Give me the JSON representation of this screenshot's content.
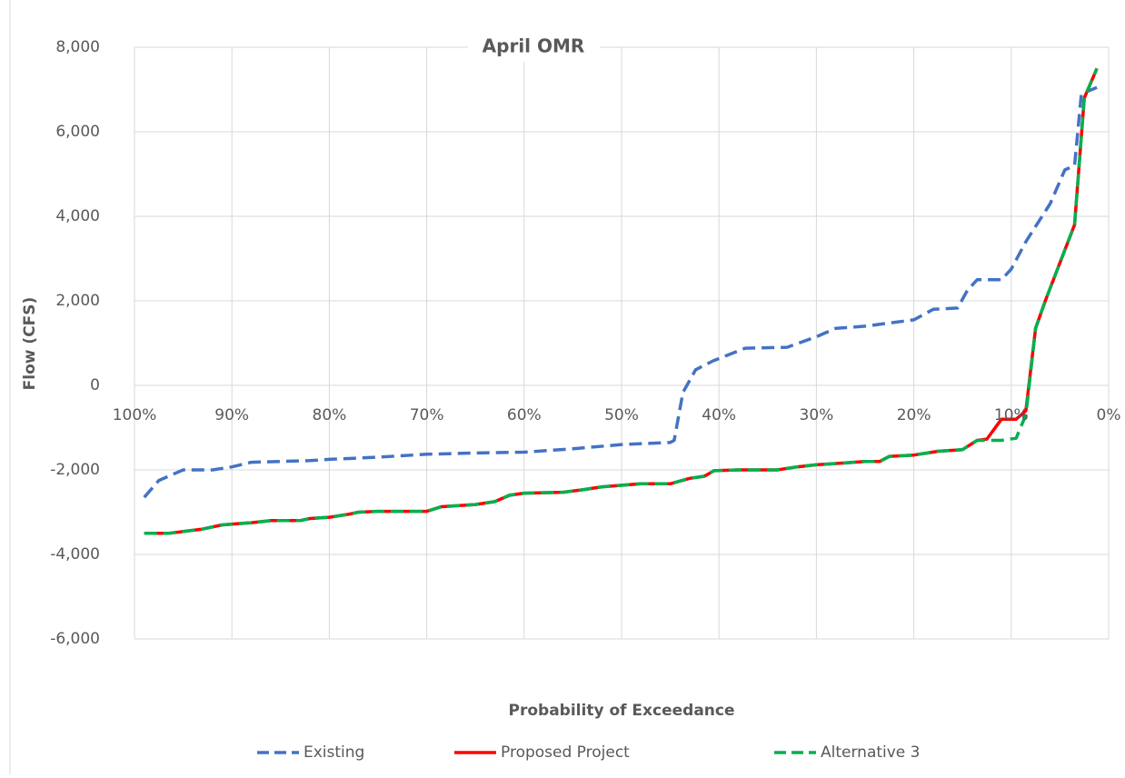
{
  "chart_data": {
    "type": "line",
    "title": "April OMR",
    "x_label": "Probability of Exceedance",
    "y_label": "Flow (CFS)",
    "xlim": [
      100,
      0
    ],
    "xticks": [
      {
        "value": 100,
        "label": "100%"
      },
      {
        "value": 90,
        "label": "90%"
      },
      {
        "value": 80,
        "label": "80%"
      },
      {
        "value": 70,
        "label": "70%"
      },
      {
        "value": 60,
        "label": "60%"
      },
      {
        "value": 50,
        "label": "50%"
      },
      {
        "value": 40,
        "label": "40%"
      },
      {
        "value": 30,
        "label": "30%"
      },
      {
        "value": 20,
        "label": "20%"
      },
      {
        "value": 10,
        "label": "10%"
      },
      {
        "value": 0,
        "label": "0%"
      }
    ],
    "ylim": [
      -6000,
      8000
    ],
    "yticks": [
      {
        "value": -6000,
        "label": "-6,000"
      },
      {
        "value": -4000,
        "label": "-4,000"
      },
      {
        "value": -2000,
        "label": "-2,000"
      },
      0,
      {
        "value": 2000,
        "label": "2,000"
      },
      {
        "value": 4000,
        "label": "4,000"
      },
      {
        "value": 6000,
        "label": "6,000"
      },
      {
        "value": 8000,
        "label": "8,000"
      }
    ],
    "grid": true,
    "legend": "bottom",
    "series": [
      {
        "name": "Existing",
        "color": "#4472c4",
        "dash": true,
        "x": [
          99,
          97.5,
          95,
          92,
          90,
          88,
          85,
          82,
          80,
          75,
          70,
          65,
          60,
          55,
          50,
          45,
          44.6,
          43.7,
          42.4,
          40.6,
          37.3,
          33,
          30,
          28,
          25,
          20,
          18,
          15.5,
          14.5,
          13.5,
          11,
          10,
          8.5,
          6,
          4.5,
          3.5,
          2.8,
          1.2
        ],
        "values": [
          -2650,
          -2250,
          -2000,
          -2000,
          -1930,
          -1820,
          -1800,
          -1780,
          -1750,
          -1700,
          -1630,
          -1600,
          -1580,
          -1500,
          -1400,
          -1350,
          -1300,
          -170,
          370,
          580,
          880,
          900,
          1150,
          1350,
          1400,
          1550,
          1800,
          1830,
          2250,
          2500,
          2500,
          2750,
          3400,
          4300,
          5100,
          5200,
          6900,
          7050
        ]
      },
      {
        "name": "Proposed Project",
        "color": "#ff0000",
        "dash": false,
        "x": [
          99,
          96.5,
          93,
          91,
          88,
          86,
          83,
          82,
          80,
          78,
          77,
          75,
          70,
          68.5,
          65,
          63,
          61.5,
          60,
          56,
          54,
          52,
          48,
          45,
          43,
          41.5,
          40.5,
          38,
          34,
          32,
          30,
          28,
          25,
          23.5,
          22.5,
          20,
          17.5,
          15,
          13.5,
          12.5,
          11,
          9.5,
          8.5,
          7.5,
          6.5,
          3.5,
          2.5,
          1.2
        ],
        "values": [
          -3500,
          -3500,
          -3400,
          -3300,
          -3250,
          -3200,
          -3200,
          -3150,
          -3120,
          -3050,
          -3000,
          -2980,
          -2980,
          -2870,
          -2820,
          -2750,
          -2600,
          -2550,
          -2530,
          -2470,
          -2400,
          -2330,
          -2330,
          -2200,
          -2150,
          -2020,
          -2000,
          -2000,
          -1930,
          -1880,
          -1850,
          -1800,
          -1800,
          -1680,
          -1650,
          -1560,
          -1520,
          -1300,
          -1270,
          -800,
          -800,
          -600,
          1350,
          2000,
          3800,
          6800,
          7500
        ]
      },
      {
        "name": "Alternative 3",
        "color": "#00b050",
        "dash": true,
        "x": [
          99,
          96.5,
          93,
          91,
          88,
          86,
          83,
          82,
          80,
          78,
          77,
          75,
          70,
          68.5,
          65,
          63,
          61.5,
          60,
          56,
          54,
          52,
          48,
          45,
          43,
          41.5,
          40.5,
          38,
          34,
          32,
          30,
          28,
          25,
          23.5,
          22.5,
          20,
          17.5,
          15,
          13.5,
          12.5,
          11,
          9.5,
          8.5,
          7.5,
          6.5,
          3.5,
          2.5,
          1.2
        ],
        "values": [
          -3500,
          -3500,
          -3400,
          -3300,
          -3250,
          -3200,
          -3200,
          -3150,
          -3120,
          -3050,
          -3000,
          -2980,
          -2980,
          -2870,
          -2820,
          -2750,
          -2600,
          -2550,
          -2530,
          -2470,
          -2400,
          -2330,
          -2330,
          -2200,
          -2150,
          -2020,
          -2000,
          -2000,
          -1930,
          -1880,
          -1850,
          -1800,
          -1800,
          -1680,
          -1650,
          -1560,
          -1520,
          -1300,
          -1300,
          -1300,
          -1250,
          -700,
          1350,
          2000,
          3800,
          6800,
          7500
        ]
      }
    ]
  }
}
